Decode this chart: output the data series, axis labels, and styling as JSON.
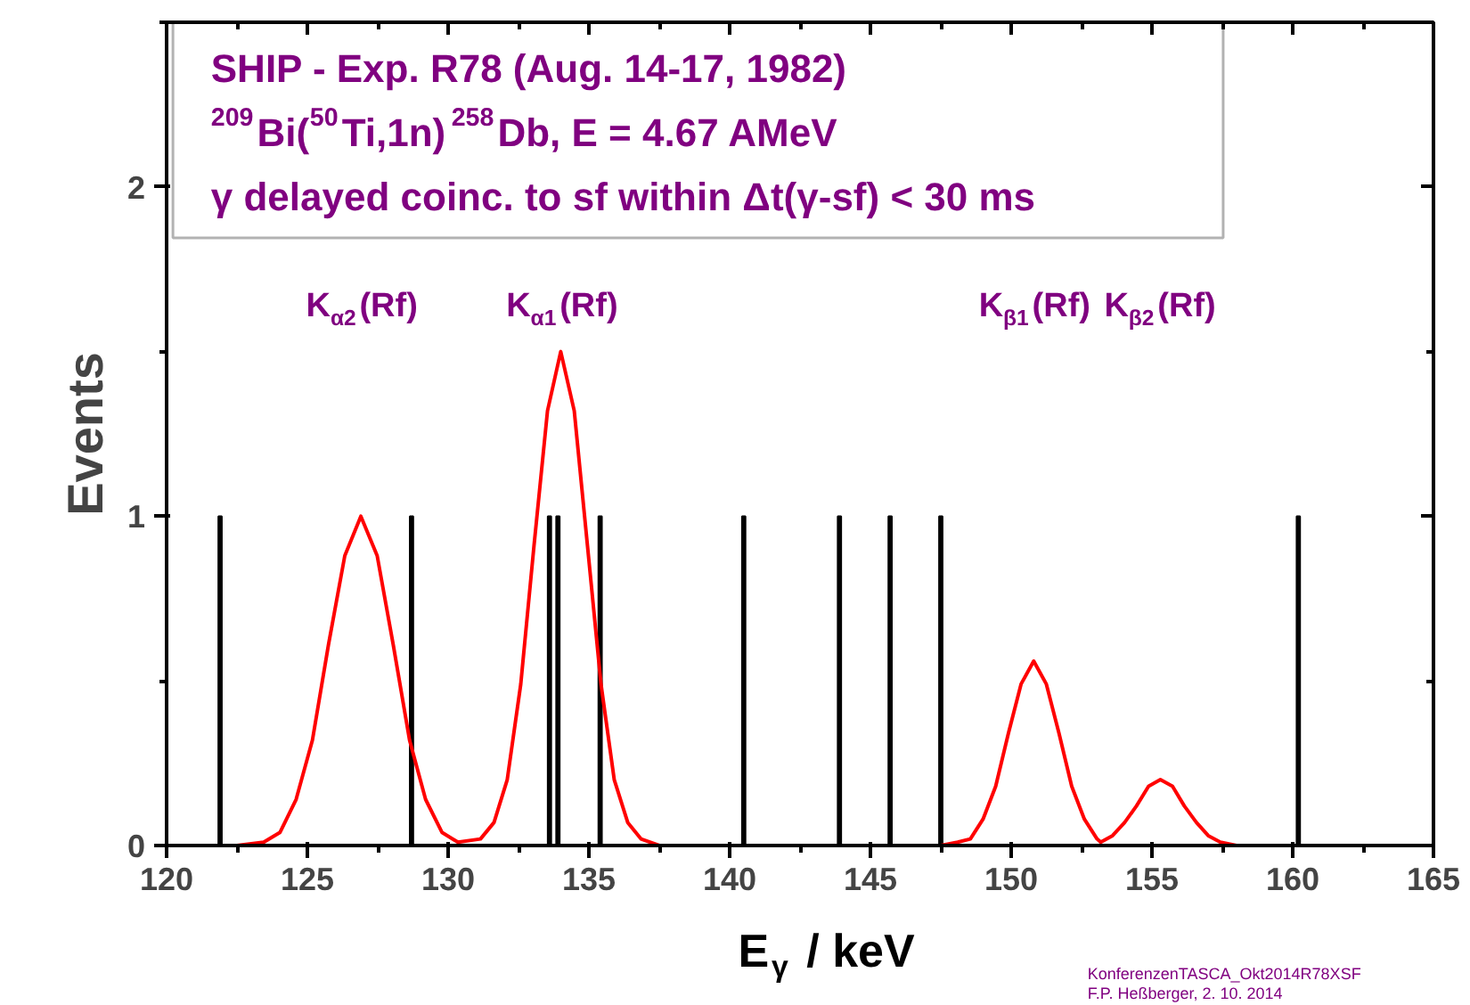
{
  "chart_data": {
    "type": "line",
    "xlabel": "E$_{γ}$ / keV",
    "ylabel": "Events",
    "xlim": [
      120,
      165
    ],
    "ylim": [
      0,
      2.5
    ],
    "xticks": [
      120,
      125,
      130,
      135,
      140,
      145,
      150,
      155,
      160,
      165
    ],
    "yticks": [
      0,
      1,
      2
    ],
    "grid": false,
    "series": [
      {
        "type": "bar",
        "color": "#000000",
        "x": [
          121.9,
          128.7,
          133.6,
          133.9,
          135.4,
          140.5,
          143.9,
          145.7,
          147.5,
          160.2
        ],
        "values": [
          1,
          1,
          1,
          1,
          1,
          1,
          1,
          1,
          1,
          1
        ]
      },
      {
        "color": "#ff0000",
        "x": [
          120,
          122.5,
          123.45,
          124.03,
          124.6,
          125.18,
          125.75,
          126.33,
          126.9,
          127.48,
          128.05,
          128.63,
          129.2,
          129.78,
          130.35,
          131.15,
          131.63,
          132.1,
          132.58,
          133.05,
          133.53,
          134.0,
          134.48,
          134.95,
          135.43,
          135.9,
          136.38,
          136.85,
          137.5,
          147.5,
          148.1,
          148.55,
          149.0,
          149.45,
          149.9,
          150.35,
          150.8,
          151.25,
          151.7,
          152.15,
          152.6,
          153.05,
          153.18,
          153.6,
          154.03,
          154.45,
          154.88,
          155.3,
          155.73,
          156.15,
          156.58,
          157.0,
          157.43,
          158,
          165
        ],
        "values": [
          0,
          0,
          0.01,
          0.04,
          0.14,
          0.32,
          0.61,
          0.88,
          1.0,
          0.88,
          0.61,
          0.32,
          0.14,
          0.04,
          0.01,
          0.02,
          0.07,
          0.2,
          0.49,
          0.91,
          1.32,
          1.5,
          1.32,
          0.91,
          0.49,
          0.2,
          0.07,
          0.02,
          0,
          0,
          0.01,
          0.02,
          0.08,
          0.18,
          0.34,
          0.49,
          0.56,
          0.49,
          0.34,
          0.18,
          0.08,
          0.02,
          0.01,
          0.03,
          0.07,
          0.12,
          0.18,
          0.2,
          0.18,
          0.12,
          0.07,
          0.03,
          0.01,
          0,
          0
        ]
      }
    ],
    "annotations": [
      "SHIP - Exp. R78 (Aug. 14-17, 1982)",
      "$^{209}$Bi($^{50}$Ti,1n)$^{258}$Db, E = 4.67 AMeV",
      "γ delayed coinc. to sf within Δt(γ-sf) < 30 ms",
      "K$_{α2}$(Rf)",
      "K$_{α1}$(Rf)",
      "K$_{β1}$(Rf)",
      "K$_{β2}$(Rf)",
      "KonferenzenTASCA_Okt2014R78XSF",
      "F.P. Heßberger, 2. 10. 2014"
    ]
  }
}
